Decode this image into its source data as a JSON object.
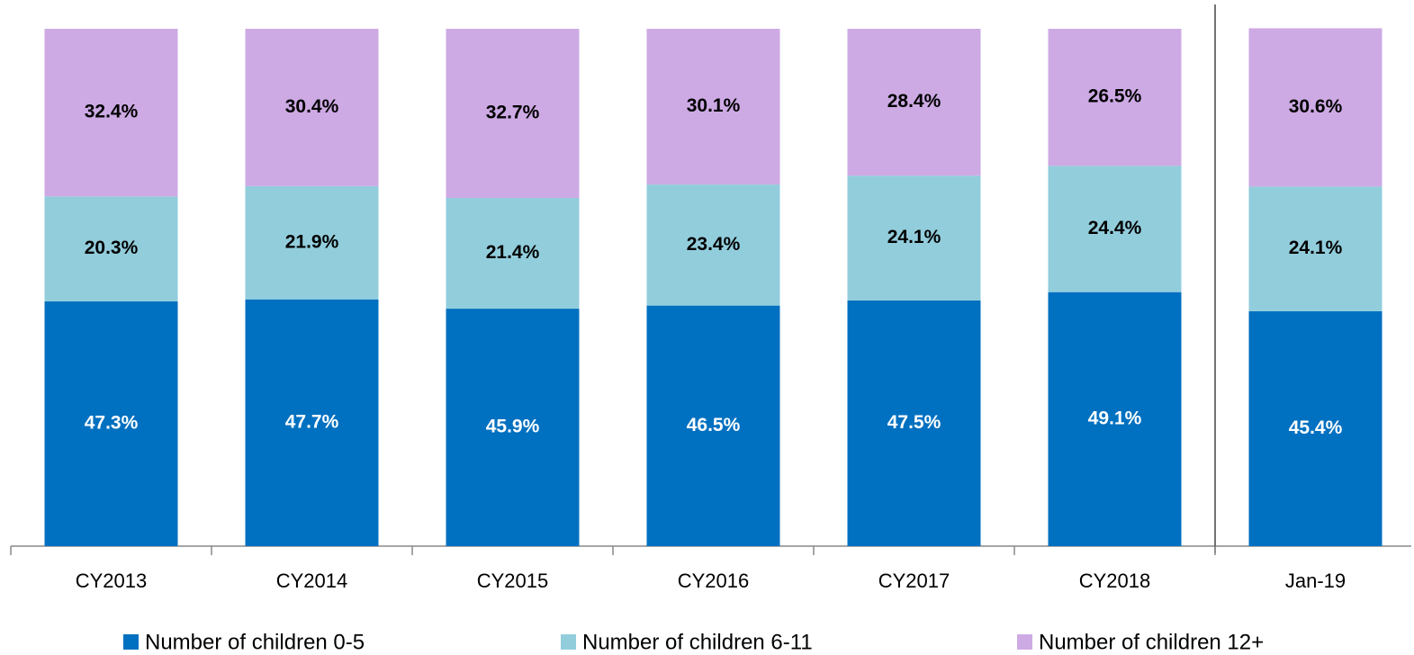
{
  "chart_data": {
    "type": "stacked_bar",
    "categories": [
      "CY2013",
      "CY2014",
      "CY2015",
      "CY2016",
      "CY2017",
      "CY2018",
      "Jan-19"
    ],
    "series": [
      {
        "name": "Number of children 0-5",
        "color": "#0070c0",
        "values": [
          47.3,
          47.7,
          45.9,
          46.5,
          47.5,
          49.1,
          45.4
        ],
        "value_labels": [
          "47.3%",
          "47.7%",
          "45.9%",
          "46.5%",
          "47.5%",
          "49.1%",
          "45.4%"
        ]
      },
      {
        "name": "Number of children 6-11",
        "color": "#92cddc",
        "values": [
          20.3,
          21.9,
          21.4,
          23.4,
          24.1,
          24.4,
          24.1
        ],
        "value_labels": [
          "20.3%",
          "21.9%",
          "21.4%",
          "23.4%",
          "24.1%",
          "24.4%",
          "24.1%"
        ]
      },
      {
        "name": "Number of children 12+",
        "color": "#cdaae4",
        "values": [
          32.4,
          30.4,
          32.7,
          30.1,
          28.4,
          26.5,
          30.6
        ],
        "value_labels": [
          "32.4%",
          "30.4%",
          "32.7%",
          "30.1%",
          "28.4%",
          "26.5%",
          "30.6%"
        ]
      }
    ],
    "ylim": [
      0,
      100
    ],
    "legend": "bottom"
  }
}
